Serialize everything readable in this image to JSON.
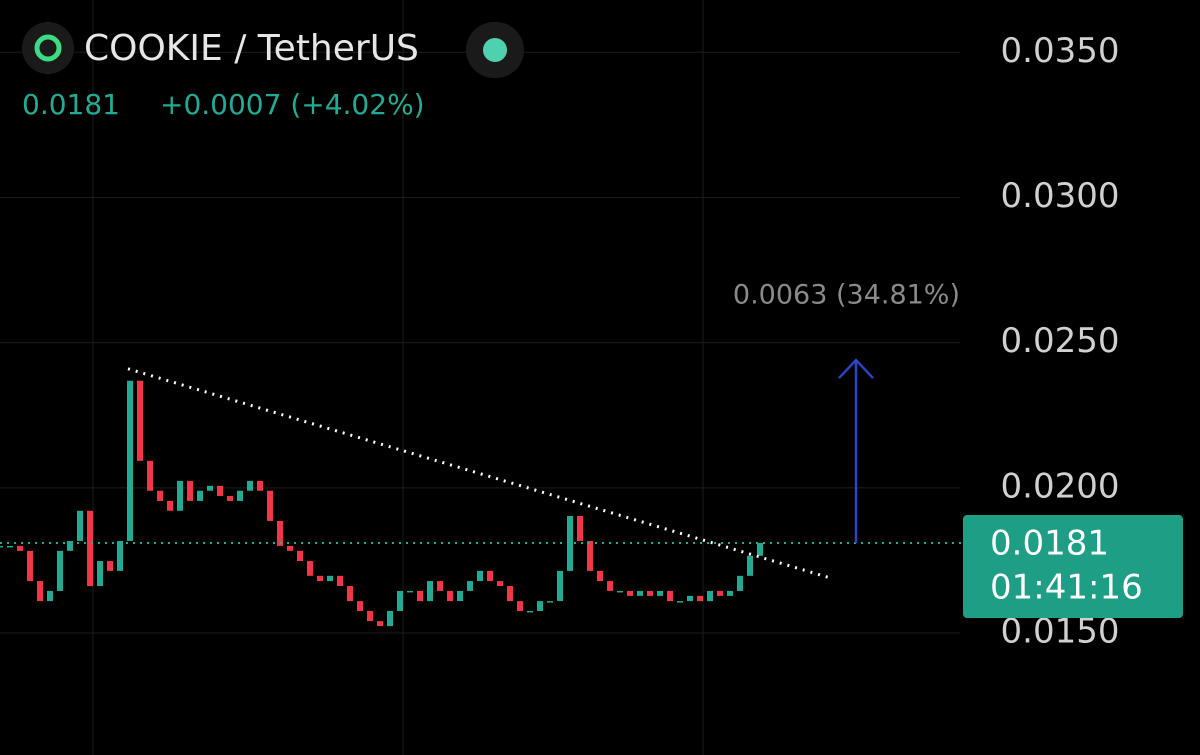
{
  "chart_data": {
    "type": "candlestick",
    "title": "COOKIE / TetherUS",
    "last_price": 0.0181,
    "change": "+0.0007 (+4.02%)",
    "countdown": "01:41:16",
    "values": [
      0.018,
      0.018,
      0.01783,
      0.01679,
      0.0161,
      0.01645,
      0.01783,
      0.01817,
      0.01921,
      0.01662,
      0.01748,
      0.01714,
      0.01817,
      0.02369,
      0.02093,
      0.0199,
      0.01955,
      0.01921,
      0.02024,
      0.01955,
      0.0199,
      0.02007,
      0.01972,
      0.01955,
      0.0199,
      0.02024,
      0.0199,
      0.01886,
      0.018,
      0.01783,
      0.01748,
      0.01697,
      0.01679,
      0.01697,
      0.01662,
      0.0161,
      0.01576,
      0.01541,
      0.01524,
      0.01576,
      0.01645,
      0.01645,
      0.0161,
      0.01679,
      0.01645,
      0.0161,
      0.01645,
      0.01679,
      0.01714,
      0.01679,
      0.01662,
      0.0161,
      0.01576,
      0.01576,
      0.0161,
      0.0161,
      0.01714,
      0.01903,
      0.01817,
      0.01714,
      0.01679,
      0.01645,
      0.01645,
      0.01628,
      0.01645,
      0.01628,
      0.01645,
      0.0161,
      0.0161,
      0.01628,
      0.0161,
      0.01645,
      0.01628,
      0.01645,
      0.01697,
      0.01766,
      0.0181
    ],
    "up_color": "#22ab94",
    "down_color": "#f23645",
    "ylim": [
      0.0108,
      0.0368
    ],
    "yticks": [
      {
        "value": 0.035,
        "label": "0.0350"
      },
      {
        "value": 0.03,
        "label": "0.0300"
      },
      {
        "value": 0.025,
        "label": "0.0250"
      },
      {
        "value": 0.02,
        "label": "0.0200"
      },
      {
        "value": 0.015,
        "label": "0.0150"
      }
    ],
    "grid": true,
    "trendline": [
      0.0241,
      0.0169
    ],
    "measure": {
      "from": 0.0181,
      "to": 0.0244,
      "label": "0.0063 (34.81%)"
    }
  }
}
